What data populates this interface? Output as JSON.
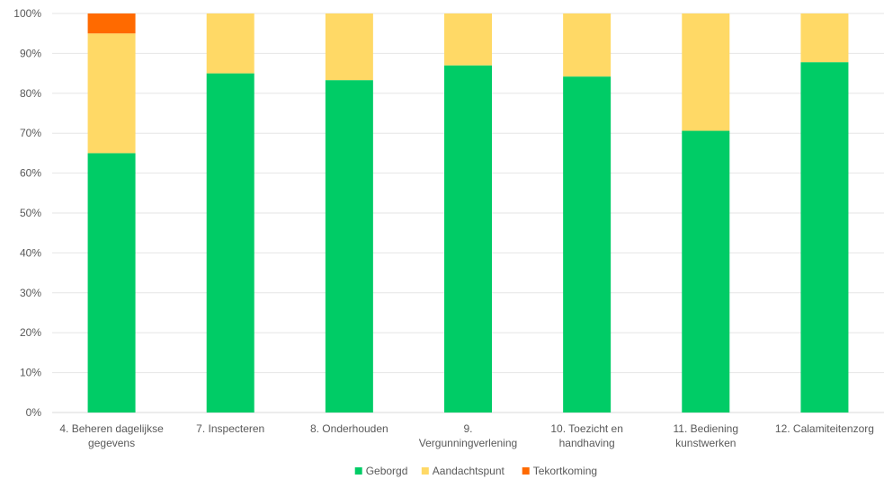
{
  "chart_data": {
    "type": "bar",
    "stacked": true,
    "percent": true,
    "categories": [
      [
        "4. Beheren dagelijkse",
        "gegevens"
      ],
      [
        "7. Inspecteren"
      ],
      [
        "8. Onderhouden"
      ],
      [
        "9.",
        "Vergunningverlening"
      ],
      [
        "10. Toezicht en",
        "handhaving"
      ],
      [
        "11. Bediening",
        "kunstwerken"
      ],
      [
        "12. Calamiteitenzorg"
      ]
    ],
    "series": [
      {
        "name": "Geborgd",
        "color": "#00cc66",
        "values": [
          65,
          85,
          83.3,
          87,
          84.2,
          70.6,
          87.8
        ]
      },
      {
        "name": "Aandachtspunt",
        "color": "#ffd966",
        "values": [
          30,
          15,
          16.7,
          13,
          15.8,
          29.4,
          12.2
        ]
      },
      {
        "name": "Tekortkoming",
        "color": "#ff6a00",
        "values": [
          5,
          0,
          0,
          0,
          0,
          0,
          0
        ]
      }
    ],
    "ylim": [
      0,
      100
    ],
    "yticks": [
      "0%",
      "10%",
      "20%",
      "30%",
      "40%",
      "50%",
      "60%",
      "70%",
      "80%",
      "90%",
      "100%"
    ],
    "grid": true,
    "legend_position": "bottom"
  }
}
